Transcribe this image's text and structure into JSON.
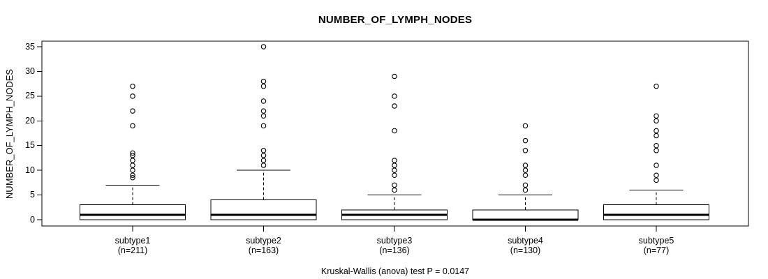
{
  "chart_data": {
    "type": "boxplot",
    "title": "NUMBER_OF_LYMPH_NODES",
    "ylabel": "NUMBER_OF_LYMPH_NODES",
    "xlabel": "",
    "caption": "Kruskal-Wallis (anova) test P = 0.0147",
    "ylim": [
      0,
      35
    ],
    "yticks": [
      0,
      5,
      10,
      15,
      20,
      25,
      30,
      35
    ],
    "grid": false,
    "colors": {
      "stroke": "#000000",
      "box_fill": "#ffffff",
      "background": "#ffffff"
    },
    "groups": [
      {
        "label": "subtype1",
        "n_label": "(n=211)",
        "n": 211,
        "stats": {
          "min": 0,
          "q1": 0,
          "median": 1,
          "q3": 3,
          "whisker_high": 7
        },
        "outliers": [
          8.5,
          9,
          10,
          11,
          12,
          13,
          13.5,
          19,
          22,
          25,
          27
        ]
      },
      {
        "label": "subtype2",
        "n_label": "(n=163)",
        "n": 163,
        "stats": {
          "min": 0,
          "q1": 0,
          "median": 1,
          "q3": 4,
          "whisker_high": 10
        },
        "outliers": [
          11,
          12,
          13,
          14,
          19,
          21,
          22,
          24,
          27,
          28,
          35
        ]
      },
      {
        "label": "subtype3",
        "n_label": "(n=136)",
        "n": 136,
        "stats": {
          "min": 0,
          "q1": 0,
          "median": 1,
          "q3": 2,
          "whisker_high": 5
        },
        "outliers": [
          6,
          7,
          9,
          10,
          11,
          12,
          18,
          23,
          25,
          29
        ]
      },
      {
        "label": "subtype4",
        "n_label": "(n=130)",
        "n": 130,
        "stats": {
          "min": 0,
          "q1": 0,
          "median": 0,
          "q3": 2,
          "whisker_high": 5
        },
        "outliers": [
          6,
          7,
          9,
          10,
          11,
          14,
          16,
          19
        ]
      },
      {
        "label": "subtype5",
        "n_label": "(n=77)",
        "n": 77,
        "stats": {
          "min": 0,
          "q1": 0,
          "median": 1,
          "q3": 3,
          "whisker_high": 6
        },
        "outliers": [
          8,
          9,
          11,
          14,
          15,
          17,
          18,
          20,
          21,
          27
        ]
      }
    ]
  }
}
